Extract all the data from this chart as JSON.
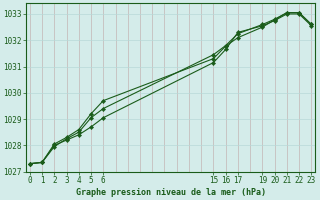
{
  "bg_color": "#d4ecea",
  "plot_bg_color": "#d4ecea",
  "line_color": "#1a5c1a",
  "grid_color_v": "#c4b4b4",
  "grid_color_h": "#b8d8d8",
  "spine_color": "#1a5c1a",
  "ylim": [
    1027,
    1033.4
  ],
  "yticks": [
    1027,
    1028,
    1029,
    1030,
    1031,
    1032,
    1033
  ],
  "xlim": [
    0,
    23
  ],
  "xticks": [
    0,
    1,
    2,
    3,
    4,
    5,
    6,
    15,
    16,
    17,
    19,
    20,
    21,
    22,
    23
  ],
  "xlabel": "Graphe pression niveau de la mer (hPa)",
  "series1_x": [
    0,
    1,
    2,
    3,
    4,
    5,
    6,
    15,
    16,
    17,
    19,
    20,
    21,
    22,
    23
  ],
  "series1_y": [
    1027.3,
    1027.35,
    1028.0,
    1028.2,
    1028.4,
    1028.7,
    1029.05,
    1031.15,
    1031.65,
    1032.3,
    1032.55,
    1032.75,
    1033.0,
    1033.0,
    1032.55
  ],
  "series2_x": [
    0,
    1,
    2,
    3,
    4,
    5,
    6,
    15,
    16,
    17,
    19,
    20,
    21,
    22,
    23
  ],
  "series2_y": [
    1027.3,
    1027.35,
    1027.95,
    1028.25,
    1028.5,
    1029.05,
    1029.4,
    1031.45,
    1031.8,
    1032.25,
    1032.6,
    1032.8,
    1033.05,
    1033.05,
    1032.6
  ],
  "series3_x": [
    0,
    1,
    2,
    3,
    4,
    5,
    6,
    15,
    16,
    17,
    19,
    20,
    21,
    22,
    23
  ],
  "series3_y": [
    1027.3,
    1027.35,
    1028.05,
    1028.3,
    1028.6,
    1029.2,
    1029.7,
    1031.3,
    1031.78,
    1032.1,
    1032.5,
    1032.78,
    1033.05,
    1033.05,
    1032.6
  ],
  "tick_fontsize": 5.5,
  "xlabel_fontsize": 6.0
}
